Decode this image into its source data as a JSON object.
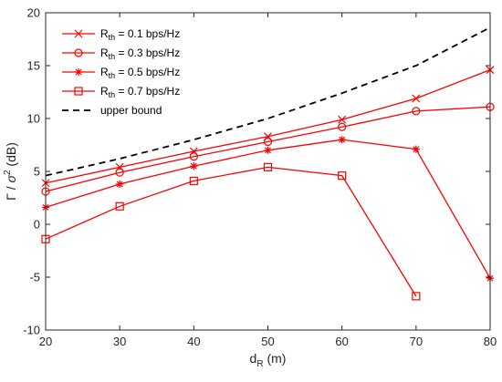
{
  "chart_data": {
    "type": "line",
    "xlabel": {
      "main": "d",
      "sub": "R",
      "unit": " (m)"
    },
    "ylabel": {
      "gamma": "Γ",
      "slash": " / ",
      "sigma": "σ",
      "sup": "2",
      "unit": " (dB)"
    },
    "xlim": [
      20,
      80
    ],
    "ylim": [
      -10,
      20
    ],
    "xticks": [
      20,
      30,
      40,
      50,
      60,
      70,
      80
    ],
    "yticks": [
      -10,
      -5,
      0,
      5,
      10,
      15,
      20
    ],
    "xtick_labels": [
      "20",
      "30",
      "40",
      "50",
      "60",
      "70",
      "80"
    ],
    "ytick_labels": [
      "-10",
      "-5",
      "0",
      "5",
      "10",
      "15",
      "20"
    ],
    "grid": false,
    "legend_position": "top-left",
    "series": [
      {
        "legend": {
          "main": "R",
          "sub": "th",
          "rest": " = 0.1 bps/Hz"
        },
        "marker": "x",
        "color": "#ff0000",
        "dash": "solid",
        "x": [
          20,
          30,
          40,
          50,
          60,
          70,
          80
        ],
        "values": [
          3.9,
          5.4,
          6.9,
          8.3,
          9.9,
          11.9,
          14.6
        ]
      },
      {
        "legend": {
          "main": "R",
          "sub": "th",
          "rest": " = 0.3 bps/Hz"
        },
        "marker": "circle",
        "color": "#ff0000",
        "dash": "solid",
        "x": [
          20,
          30,
          40,
          50,
          60,
          70,
          80
        ],
        "values": [
          3.1,
          4.9,
          6.4,
          7.8,
          9.2,
          10.7,
          11.1
        ]
      },
      {
        "legend": {
          "main": "R",
          "sub": "th",
          "rest": " = 0.5 bps/Hz"
        },
        "marker": "asterisk",
        "color": "#ff0000",
        "dash": "solid",
        "x": [
          20,
          30,
          40,
          50,
          60,
          70,
          80
        ],
        "values": [
          1.6,
          3.8,
          5.5,
          7.0,
          8.0,
          7.1,
          -5.1
        ]
      },
      {
        "legend": {
          "main": "R",
          "sub": "th",
          "rest": " = 0.7 bps/Hz"
        },
        "marker": "square",
        "color": "#ff0000",
        "dash": "solid",
        "x": [
          20,
          30,
          40,
          50,
          60,
          70
        ],
        "values": [
          -1.4,
          1.7,
          4.1,
          5.4,
          4.6,
          -6.8
        ]
      },
      {
        "legend": {
          "main": "upper bound",
          "sub": "",
          "rest": ""
        },
        "marker": "none",
        "color": "#000000",
        "dash": "dashed",
        "x": [
          20,
          30,
          40,
          50,
          60,
          70,
          80
        ],
        "values": [
          4.6,
          6.2,
          8.0,
          10.0,
          12.4,
          15.0,
          18.6
        ]
      }
    ]
  }
}
